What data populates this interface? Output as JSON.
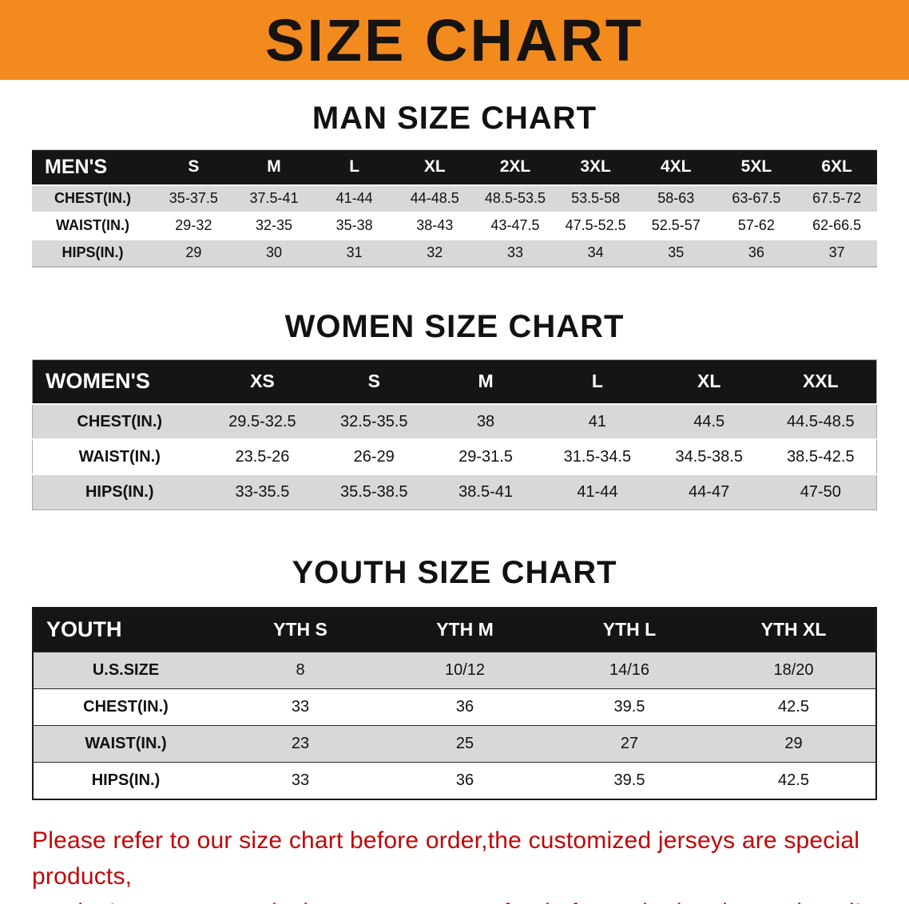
{
  "banner": {
    "title": "SIZE CHART"
  },
  "colors": {
    "banner_bg": "#F28A1E",
    "table_header_bg": "#151515",
    "table_header_text": "#FFFFFF",
    "stripe_gray": "#D8D8D8",
    "disclaimer_red": "#C30505"
  },
  "sections": [
    {
      "heading": "MAN SIZE CHART",
      "table": {
        "header": [
          "MEN'S",
          "S",
          "M",
          "L",
          "XL",
          "2XL",
          "3XL",
          "4XL",
          "5XL",
          "6XL"
        ],
        "rows": [
          [
            "CHEST(IN.)",
            "35-37.5",
            "37.5-41",
            "41-44",
            "44-48.5",
            "48.5-53.5",
            "53.5-58",
            "58-63",
            "63-67.5",
            "67.5-72"
          ],
          [
            "WAIST(IN.)",
            "29-32",
            "32-35",
            "35-38",
            "38-43",
            "43-47.5",
            "47.5-52.5",
            "52.5-57",
            "57-62",
            "62-66.5"
          ],
          [
            "HIPS(IN.)",
            "29",
            "30",
            "31",
            "32",
            "33",
            "34",
            "35",
            "36",
            "37"
          ]
        ]
      }
    },
    {
      "heading": "WOMEN SIZE CHART",
      "table": {
        "header": [
          "WOMEN'S",
          "XS",
          "S",
          "M",
          "L",
          "XL",
          "XXL"
        ],
        "rows": [
          [
            "CHEST(IN.)",
            "29.5-32.5",
            "32.5-35.5",
            "38",
            "41",
            "44.5",
            "44.5-48.5"
          ],
          [
            "WAIST(IN.)",
            "23.5-26",
            "26-29",
            "29-31.5",
            "31.5-34.5",
            "34.5-38.5",
            "38.5-42.5"
          ],
          [
            "HIPS(IN.)",
            "33-35.5",
            "35.5-38.5",
            "38.5-41",
            "41-44",
            "44-47",
            "47-50"
          ]
        ]
      }
    },
    {
      "heading": "YOUTH SIZE CHART",
      "table": {
        "header": [
          "YOUTH",
          "YTH S",
          "YTH M",
          "YTH L",
          "YTH XL"
        ],
        "rows": [
          [
            "U.S.SIZE",
            "8",
            "10/12",
            "14/16",
            "18/20"
          ],
          [
            "CHEST(IN.)",
            "33",
            "36",
            "39.5",
            "42.5"
          ],
          [
            "WAIST(IN.)",
            "23",
            "25",
            "27",
            "29"
          ],
          [
            "HIPS(IN.)",
            "33",
            "36",
            "39.5",
            "42.5"
          ]
        ]
      }
    }
  ],
  "disclaimer": {
    "line1": "Please refer to our size chart before order,the customized jerseys are special products,",
    "line2": "we don't accept cancel, change, teturn or refund after order has been placed!"
  }
}
